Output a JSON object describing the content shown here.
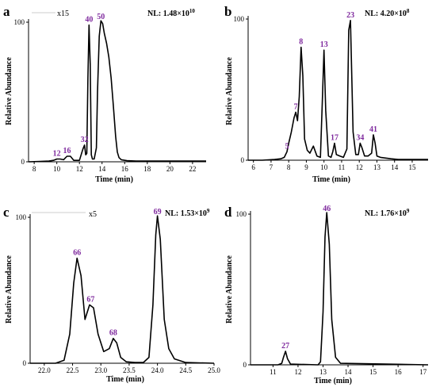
{
  "chart_data": [
    {
      "panel": "a",
      "type": "line",
      "xlabel": "Time (min)",
      "ylabel": "Relative Abundance",
      "nl": {
        "prefix": "NL: 1.48×10",
        "exp": "10"
      },
      "magnification": "x15",
      "xlim": [
        7.5,
        23.2
      ],
      "ylim": [
        0,
        100
      ],
      "xticks": [
        "8",
        "10",
        "12",
        "14",
        "16",
        "18",
        "20",
        "22"
      ],
      "xtick_values": [
        8,
        10,
        12,
        14,
        16,
        18,
        20,
        22
      ],
      "yticks": [
        "0",
        "100"
      ],
      "trace": {
        "x": [
          7.5,
          8.5,
          9.3,
          9.7,
          10.0,
          10.3,
          10.6,
          10.9,
          11.2,
          11.5,
          11.8,
          12.0,
          12.3,
          12.45,
          12.55,
          12.65,
          12.75,
          12.85,
          12.95,
          13.05,
          13.15,
          13.3,
          13.5,
          13.6,
          13.75,
          13.9,
          14.05,
          14.2,
          14.4,
          14.6,
          14.8,
          15.0,
          15.2,
          15.35,
          15.5,
          15.7,
          16.2,
          17.0,
          23.2
        ],
        "y": [
          0,
          0.2,
          0.5,
          1,
          2,
          2,
          1.5,
          4,
          4,
          1,
          1,
          1,
          9,
          12,
          5,
          6,
          60,
          98,
          70,
          5,
          2,
          2,
          10,
          50,
          90,
          101,
          99,
          92,
          85,
          75,
          60,
          40,
          18,
          7,
          3,
          1.5,
          0.8,
          0.5,
          0.5
        ]
      },
      "peaks": [
        {
          "label": "12",
          "x": 10.0,
          "y": 2
        },
        {
          "label": "16",
          "x": 10.9,
          "y": 4
        },
        {
          "label": "32",
          "x": 12.45,
          "y": 12
        },
        {
          "label": "40",
          "x": 12.85,
          "y": 98
        },
        {
          "label": "50",
          "x": 13.9,
          "y": 101
        }
      ]
    },
    {
      "panel": "b",
      "type": "line",
      "xlabel": "Time (min)",
      "ylabel": "Relative Abundance",
      "nl": {
        "prefix": "NL: 4.20×10",
        "exp": "8"
      },
      "xlim": [
        5.7,
        15.9
      ],
      "ylim": [
        0,
        100
      ],
      "xticks": [
        "6",
        "7",
        "8",
        "9",
        "10",
        "11",
        "12",
        "13",
        "14",
        "15"
      ],
      "xtick_values": [
        6,
        7,
        8,
        9,
        10,
        11,
        12,
        13,
        14,
        15
      ],
      "yticks": [
        "0",
        "100"
      ],
      "trace": {
        "x": [
          5.7,
          6.5,
          7.2,
          7.55,
          7.75,
          7.9,
          8.0,
          8.15,
          8.3,
          8.4,
          8.5,
          8.6,
          8.7,
          8.8,
          8.9,
          9.05,
          9.2,
          9.4,
          9.6,
          9.8,
          9.9,
          10.0,
          10.1,
          10.25,
          10.4,
          10.5,
          10.6,
          10.7,
          10.9,
          11.1,
          11.3,
          11.4,
          11.5,
          11.65,
          11.8,
          11.95,
          12.05,
          12.15,
          12.3,
          12.5,
          12.7,
          12.8,
          12.9,
          13.0,
          13.2,
          13.5,
          13.8,
          14.2,
          15.9
        ],
        "y": [
          0,
          0,
          0.5,
          1,
          2,
          6,
          12,
          20,
          30,
          34,
          28,
          45,
          80,
          60,
          15,
          7,
          5,
          10,
          3,
          2,
          40,
          78,
          35,
          3,
          2,
          6,
          12,
          4,
          3,
          2,
          8,
          92,
          99,
          20,
          4,
          4,
          12,
          9,
          3,
          3,
          5,
          18,
          12,
          3,
          2,
          1.5,
          1,
          0.5,
          0.5
        ]
      },
      "peaks": [
        {
          "label": "5",
          "x": 7.9,
          "y": 6
        },
        {
          "label": "7",
          "x": 8.4,
          "y": 34
        },
        {
          "label": "8",
          "x": 8.7,
          "y": 80
        },
        {
          "label": "13",
          "x": 10.0,
          "y": 78
        },
        {
          "label": "17",
          "x": 10.6,
          "y": 12
        },
        {
          "label": "23",
          "x": 11.5,
          "y": 99
        },
        {
          "label": "34",
          "x": 12.05,
          "y": 12
        },
        {
          "label": "41",
          "x": 12.8,
          "y": 18
        }
      ]
    },
    {
      "panel": "c",
      "type": "line",
      "xlabel": "Time (min)",
      "ylabel": "Relative Abundance",
      "nl": {
        "prefix": "NL: 1.53×10",
        "exp": "9"
      },
      "magnification": "x5",
      "xlim": [
        21.75,
        25.0
      ],
      "ylim": [
        0,
        100
      ],
      "xticks": [
        "22.0",
        "22.5",
        "23.0",
        "23.5",
        "24.0",
        "24.5",
        "25.0"
      ],
      "xtick_values": [
        22.0,
        22.5,
        23.0,
        23.5,
        24.0,
        24.5,
        25.0
      ],
      "yticks": [
        "0",
        "100"
      ],
      "trace": {
        "x": [
          21.75,
          22.2,
          22.35,
          22.45,
          22.52,
          22.58,
          22.65,
          22.72,
          22.8,
          22.87,
          22.95,
          23.05,
          23.15,
          23.22,
          23.28,
          23.35,
          23.45,
          23.6,
          23.75,
          23.85,
          23.92,
          23.97,
          24.0,
          24.05,
          24.12,
          24.2,
          24.3,
          24.5,
          25.0
        ],
        "y": [
          0,
          0,
          2,
          20,
          55,
          72,
          60,
          30,
          40,
          38,
          20,
          8,
          10,
          17,
          14,
          4,
          1,
          0.5,
          0.5,
          4,
          40,
          88,
          101,
          85,
          30,
          10,
          3,
          0.5,
          0
        ]
      },
      "peaks": [
        {
          "label": "66",
          "x": 22.58,
          "y": 72
        },
        {
          "label": "67",
          "x": 22.82,
          "y": 40
        },
        {
          "label": "68",
          "x": 23.22,
          "y": 17
        },
        {
          "label": "69",
          "x": 24.0,
          "y": 101
        }
      ]
    },
    {
      "panel": "d",
      "type": "line",
      "xlabel": "Time (min)",
      "ylabel": "Relative Abundance",
      "nl": {
        "prefix": "NL: 1.76×10",
        "exp": "9"
      },
      "xlim": [
        10.1,
        17.2
      ],
      "ylim": [
        0,
        100
      ],
      "xticks": [
        "11",
        "12",
        "13",
        "14",
        "15",
        "16",
        "17"
      ],
      "xtick_values": [
        11,
        12,
        13,
        14,
        15,
        16,
        17
      ],
      "yticks": [
        "0",
        "100"
      ],
      "trace": {
        "x": [
          10.1,
          11.2,
          11.35,
          11.42,
          11.5,
          11.58,
          11.7,
          12.8,
          12.9,
          13.0,
          13.08,
          13.15,
          13.25,
          13.35,
          13.5,
          13.7,
          17.2
        ],
        "y": [
          0,
          0,
          1,
          5,
          9,
          4,
          0.5,
          0,
          2,
          35,
          85,
          101,
          80,
          30,
          5,
          1,
          0
        ]
      },
      "peaks": [
        {
          "label": "27",
          "x": 11.5,
          "y": 9
        },
        {
          "label": "46",
          "x": 13.15,
          "y": 101
        }
      ]
    }
  ]
}
